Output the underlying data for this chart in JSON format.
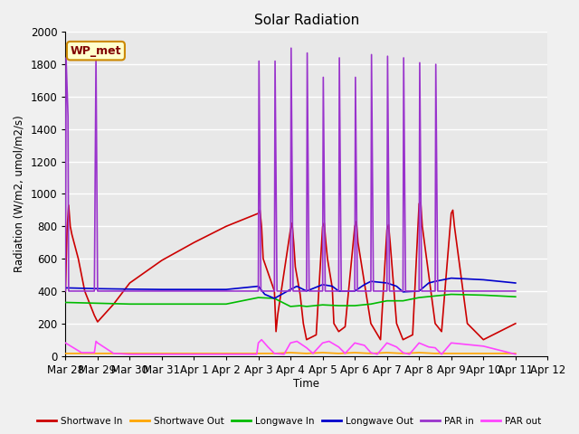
{
  "title": "Solar Radiation",
  "ylabel": "Radiation (W/m2, umol/m2/s)",
  "xlabel": "Time",
  "ylim": [
    0,
    2000
  ],
  "annotation": "WP_met",
  "background_color": "#e8e8e8",
  "grid_color": "#ffffff",
  "series": {
    "Shortwave In": {
      "color": "#cc0000",
      "times": [
        0,
        0.05,
        0.1,
        0.15,
        0.2,
        0.4,
        0.5,
        0.6,
        0.7,
        0.8,
        0.9,
        1.0,
        1.5,
        2.0,
        3.0,
        4.0,
        5.0,
        6.0,
        6.05,
        6.1,
        6.15,
        6.5,
        6.55,
        6.6,
        7.0,
        7.05,
        7.1,
        7.15,
        7.3,
        7.4,
        7.5,
        7.8,
        8.0,
        8.05,
        8.1,
        8.15,
        8.3,
        8.35,
        8.5,
        8.7,
        9.0,
        9.05,
        9.1,
        9.3,
        9.5,
        9.8,
        10.0,
        10.05,
        10.1,
        10.3,
        10.5,
        10.8,
        11.0,
        11.05,
        11.1,
        11.5,
        11.7,
        12.0,
        12.05,
        12.1,
        12.5,
        13.0,
        14.0
      ],
      "values": [
        400,
        780,
        930,
        800,
        750,
        600,
        500,
        400,
        350,
        300,
        250,
        210,
        320,
        450,
        590,
        700,
        800,
        880,
        900,
        800,
        600,
        400,
        150,
        250,
        780,
        820,
        700,
        550,
        380,
        200,
        100,
        130,
        800,
        820,
        700,
        600,
        420,
        200,
        150,
        180,
        800,
        830,
        700,
        450,
        200,
        100,
        780,
        810,
        700,
        200,
        100,
        130,
        940,
        950,
        800,
        200,
        150,
        880,
        900,
        800,
        200,
        100,
        200
      ]
    },
    "Shortwave Out": {
      "color": "#ffa500",
      "times": [
        0,
        6.0,
        6.5,
        7.0,
        7.5,
        8.0,
        8.5,
        9.0,
        9.5,
        10.0,
        10.5,
        11.0,
        11.5,
        12.0,
        14.0
      ],
      "values": [
        15,
        15,
        15,
        20,
        15,
        20,
        15,
        20,
        15,
        20,
        15,
        20,
        15,
        15,
        15
      ]
    },
    "Longwave In": {
      "color": "#00bb00",
      "times": [
        0,
        1.0,
        2.0,
        3.0,
        4.0,
        5.0,
        6.0,
        6.5,
        7.0,
        7.3,
        7.5,
        8.0,
        8.5,
        9.0,
        9.5,
        10.0,
        10.5,
        11.0,
        11.5,
        12.0,
        13.0,
        14.0
      ],
      "values": [
        330,
        325,
        320,
        320,
        320,
        320,
        360,
        355,
        305,
        310,
        305,
        315,
        310,
        310,
        320,
        340,
        340,
        360,
        370,
        380,
        375,
        365
      ]
    },
    "Longwave Out": {
      "color": "#0000cc",
      "times": [
        0,
        1.0,
        2.0,
        3.0,
        4.0,
        5.0,
        6.0,
        6.2,
        6.5,
        7.0,
        7.2,
        7.5,
        8.0,
        8.3,
        8.5,
        9.0,
        9.3,
        9.5,
        10.0,
        10.3,
        10.5,
        11.0,
        11.3,
        11.5,
        12.0,
        13.0,
        14.0
      ],
      "values": [
        420,
        415,
        412,
        410,
        410,
        410,
        430,
        380,
        355,
        410,
        430,
        400,
        440,
        430,
        400,
        400,
        440,
        460,
        450,
        430,
        395,
        400,
        450,
        460,
        480,
        470,
        450
      ]
    },
    "PAR in": {
      "color": "#9933cc",
      "times": [
        0,
        0.02,
        0.08,
        0.1,
        0.15,
        0.9,
        0.95,
        1.0,
        1.5,
        2.0,
        3.0,
        4.0,
        5.0,
        6.0,
        6.02,
        6.08,
        6.5,
        6.52,
        6.58,
        7.0,
        7.02,
        7.08,
        7.5,
        7.52,
        7.58,
        8.0,
        8.02,
        8.08,
        8.5,
        8.52,
        8.58,
        9.0,
        9.02,
        9.08,
        9.5,
        9.52,
        9.58,
        10.0,
        10.02,
        10.08,
        10.5,
        10.52,
        10.58,
        11.0,
        11.02,
        11.08,
        11.5,
        11.52,
        11.58,
        12.0,
        13.0,
        14.0
      ],
      "values": [
        400,
        1840,
        1480,
        400,
        400,
        400,
        1840,
        400,
        400,
        400,
        400,
        400,
        400,
        400,
        1820,
        400,
        400,
        1820,
        400,
        400,
        1900,
        400,
        400,
        1870,
        400,
        400,
        1720,
        400,
        400,
        1840,
        400,
        400,
        1720,
        400,
        400,
        1860,
        400,
        400,
        1850,
        400,
        400,
        1840,
        400,
        400,
        1810,
        400,
        400,
        1800,
        400,
        400,
        400,
        400
      ]
    },
    "PAR out": {
      "color": "#ff44ff",
      "times": [
        0,
        0.5,
        0.9,
        0.95,
        1.0,
        1.5,
        2.0,
        5.9,
        5.95,
        6.0,
        6.1,
        6.3,
        6.5,
        6.8,
        7.0,
        7.2,
        7.5,
        7.7,
        8.0,
        8.2,
        8.5,
        8.7,
        9.0,
        9.3,
        9.5,
        9.7,
        10.0,
        10.3,
        10.5,
        10.7,
        11.0,
        11.3,
        11.5,
        11.7,
        12.0,
        13.0,
        14.0
      ],
      "values": [
        80,
        20,
        20,
        90,
        80,
        15,
        10,
        10,
        10,
        80,
        100,
        55,
        15,
        10,
        80,
        90,
        50,
        15,
        80,
        90,
        55,
        15,
        80,
        65,
        20,
        10,
        80,
        55,
        20,
        10,
        80,
        55,
        50,
        10,
        80,
        60,
        10
      ]
    }
  },
  "xtick_labels": [
    "Mar 28",
    "Mar 29",
    "Mar 30",
    "Mar 31",
    "Apr 1",
    "Apr 2",
    "Apr 3",
    "Apr 4",
    "Apr 5",
    "Apr 6",
    "Apr 7",
    "Apr 8",
    "Apr 9",
    "Apr 10",
    "Apr 11",
    "Apr 12"
  ],
  "xtick_positions": [
    0,
    1,
    2,
    3,
    4,
    5,
    6,
    7,
    8,
    9,
    10,
    11,
    12,
    13,
    14,
    15
  ],
  "xlim": [
    0,
    15
  ],
  "legend_items": [
    {
      "label": "Shortwave In",
      "color": "#cc0000"
    },
    {
      "label": "Shortwave Out",
      "color": "#ffa500"
    },
    {
      "label": "Longwave In",
      "color": "#00bb00"
    },
    {
      "label": "Longwave Out",
      "color": "#0000cc"
    },
    {
      "label": "PAR in",
      "color": "#9933cc"
    },
    {
      "label": "PAR out",
      "color": "#ff44ff"
    }
  ]
}
